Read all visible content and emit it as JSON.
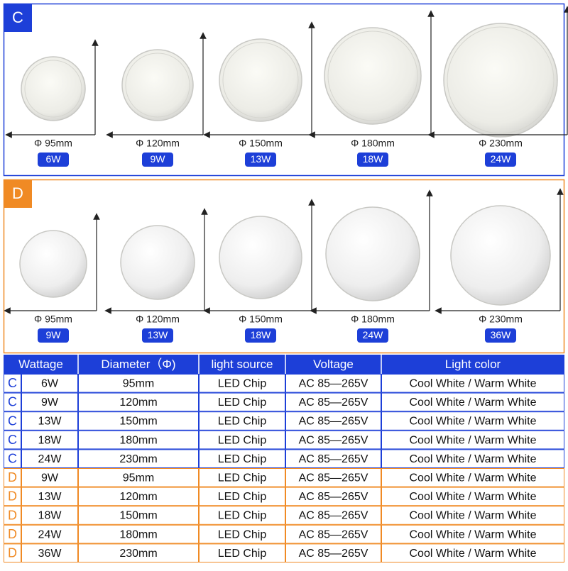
{
  "sections": [
    {
      "label": "C",
      "items": [
        {
          "diameter": "Φ 95mm",
          "wattage": "6W"
        },
        {
          "diameter": "Φ 120mm",
          "wattage": "9W"
        },
        {
          "diameter": "Φ 150mm",
          "wattage": "13W"
        },
        {
          "diameter": "Φ 180mm",
          "wattage": "18W"
        },
        {
          "diameter": "Φ 230mm",
          "wattage": "24W"
        }
      ]
    },
    {
      "label": "D",
      "items": [
        {
          "diameter": "Φ 95mm",
          "wattage": "9W"
        },
        {
          "diameter": "Φ 120mm",
          "wattage": "13W"
        },
        {
          "diameter": "Φ 150mm",
          "wattage": "18W"
        },
        {
          "diameter": "Φ 180mm",
          "wattage": "24W"
        },
        {
          "diameter": "Φ 230mm",
          "wattage": "36W"
        }
      ]
    }
  ],
  "table": {
    "header": [
      "Wattage",
      "Diameter（Φ)",
      "light source",
      "Voltage",
      "Light color"
    ],
    "rows": [
      [
        "C",
        "6W",
        "95mm",
        "LED Chip",
        "AC 85—265V",
        "Cool White / Warm White"
      ],
      [
        "C",
        "9W",
        "120mm",
        "LED Chip",
        "AC 85—265V",
        "Cool White / Warm White"
      ],
      [
        "C",
        "13W",
        "150mm",
        "LED Chip",
        "AC 85—265V",
        "Cool White / Warm White"
      ],
      [
        "C",
        "18W",
        "180mm",
        "LED Chip",
        "AC 85—265V",
        "Cool White / Warm White"
      ],
      [
        "C",
        "24W",
        "230mm",
        "LED Chip",
        "AC 85—265V",
        "Cool White / Warm White"
      ],
      [
        "D",
        "9W",
        "95mm",
        "LED Chip",
        "AC 85—265V",
        "Cool White / Warm White"
      ],
      [
        "D",
        "13W",
        "120mm",
        "LED Chip",
        "AC 85—265V",
        "Cool White / Warm White"
      ],
      [
        "D",
        "18W",
        "150mm",
        "LED Chip",
        "AC 85—265V",
        "Cool White / Warm White"
      ],
      [
        "D",
        "24W",
        "180mm",
        "LED Chip",
        "AC 85—265V",
        "Cool White / Warm White"
      ],
      [
        "D",
        "36W",
        "230mm",
        "LED Chip",
        "AC 85—265V",
        "Cool White / Warm White"
      ]
    ]
  }
}
